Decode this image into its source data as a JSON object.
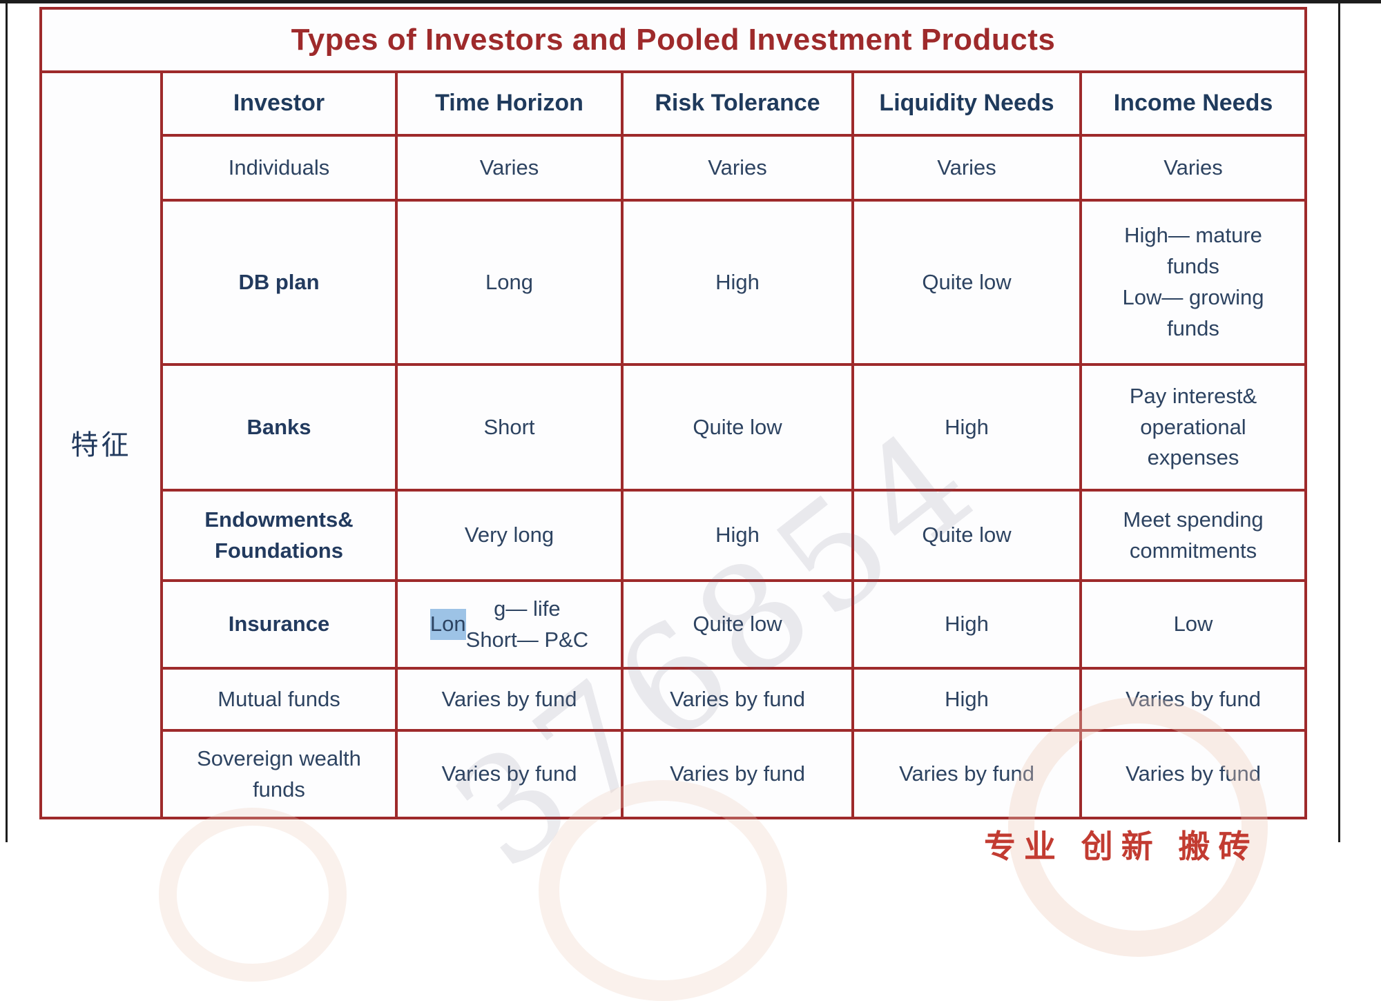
{
  "page": {
    "title": "Types of Investors and Pooled Investment Products",
    "row_header": "特征",
    "watermark": "376854",
    "footer_stamp": "专业 创新 搬砖"
  },
  "table": {
    "columns": [
      "Investor",
      "Time Horizon",
      "Risk Tolerance",
      "Liquidity Needs",
      "Income Needs"
    ],
    "rows": [
      {
        "investor": "Individuals",
        "time_horizon": "Varies",
        "risk_tolerance": "Varies",
        "liquidity_needs": "Varies",
        "income_needs": "Varies"
      },
      {
        "investor": "DB plan",
        "time_horizon": "Long",
        "risk_tolerance": "High",
        "liquidity_needs": "Quite low",
        "income_needs": "High— mature\nfunds\nLow— growing\nfunds"
      },
      {
        "investor": "Banks",
        "time_horizon": "Short",
        "risk_tolerance": "Quite low",
        "liquidity_needs": "High",
        "income_needs": "Pay interest&\noperational\nexpenses"
      },
      {
        "investor": "Endowments&\nFoundations",
        "time_horizon": "Very long",
        "risk_tolerance": "High",
        "liquidity_needs": "Quite low",
        "income_needs": "Meet spending\ncommitments"
      },
      {
        "investor": "Insurance",
        "time_horizon_highlight": "Lon",
        "time_horizon_rest": "g— life\nShort— P&C",
        "risk_tolerance": "Quite low",
        "liquidity_needs": "High",
        "income_needs": "Low"
      },
      {
        "investor": "Mutual funds",
        "time_horizon": "Varies by fund",
        "risk_tolerance": "Varies by fund",
        "liquidity_needs": "High",
        "income_needs": "Varies by fund"
      },
      {
        "investor": "Sovereign wealth\nfunds",
        "time_horizon": "Varies by fund",
        "risk_tolerance": "Varies by fund",
        "liquidity_needs": "Varies by fund",
        "income_needs": "Varies by fund"
      }
    ]
  },
  "colors": {
    "border_red": "#9e2a2b",
    "title_red": "#9e2a2b",
    "text_navy": "#2d4361",
    "header_navy": "#1f3a5c",
    "highlight_blue": "#9dc3e6",
    "stamp_red": "#c23b31"
  }
}
